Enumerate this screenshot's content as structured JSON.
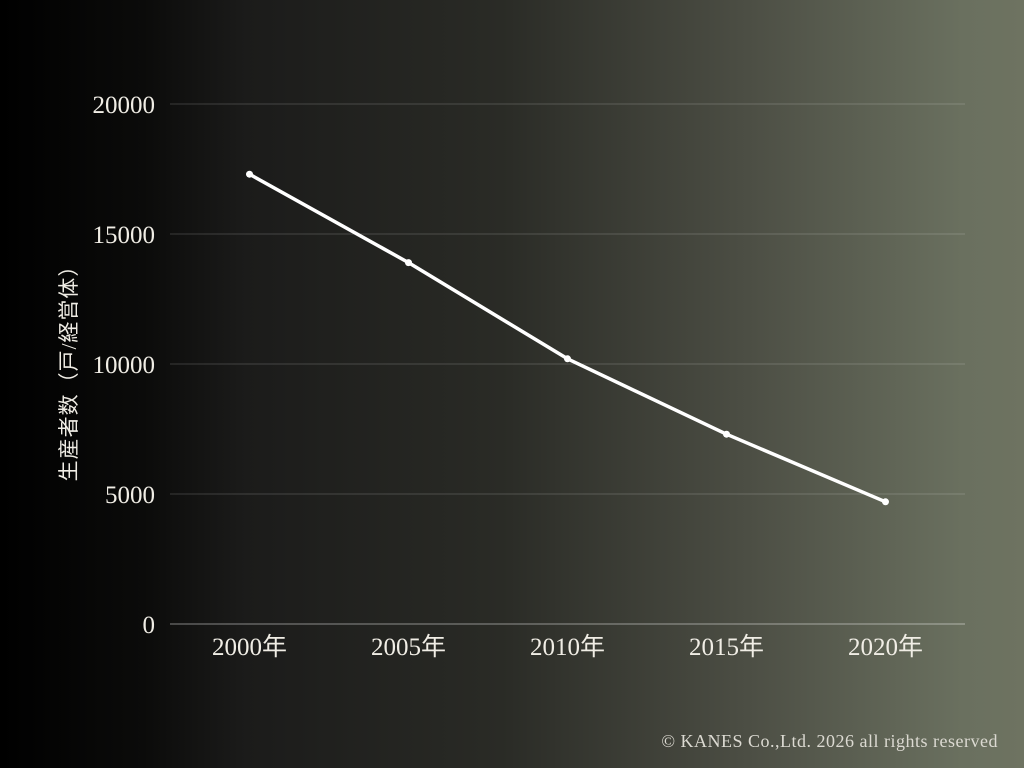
{
  "chart_data": {
    "type": "line",
    "title": "",
    "categories": [
      "2000年",
      "2005年",
      "2010年",
      "2015年",
      "2020年"
    ],
    "values": [
      17300,
      13900,
      10200,
      7300,
      4700
    ],
    "xlabel": "",
    "ylabel": "生産者数（戸/経営体）",
    "ylim": [
      0,
      20000
    ],
    "yticks": [
      0,
      5000,
      10000,
      15000,
      20000
    ],
    "grid": true,
    "legend": false,
    "line_color": "#ffffff",
    "marker": "circle"
  },
  "footer": {
    "copyright": "© KANES Co.,Ltd. 2026 all rights reserved"
  },
  "colors": {
    "text": "#f0ede5",
    "gridline": "rgba(255,255,255,0.18)",
    "baseline": "rgba(255,255,255,0.32)"
  }
}
